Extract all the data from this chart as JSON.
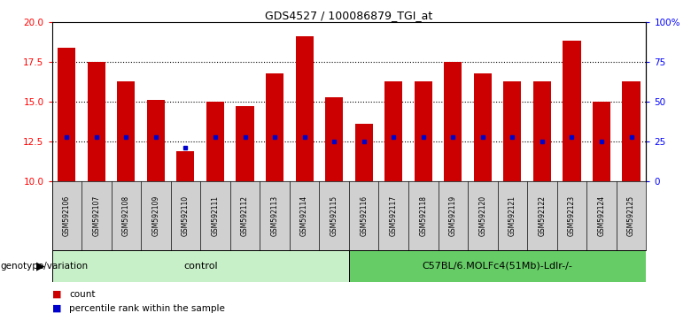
{
  "title": "GDS4527 / 100086879_TGI_at",
  "samples": [
    "GSM592106",
    "GSM592107",
    "GSM592108",
    "GSM592109",
    "GSM592110",
    "GSM592111",
    "GSM592112",
    "GSM592113",
    "GSM592114",
    "GSM592115",
    "GSM592116",
    "GSM592117",
    "GSM592118",
    "GSM592119",
    "GSM592120",
    "GSM592121",
    "GSM592122",
    "GSM592123",
    "GSM592124",
    "GSM592125"
  ],
  "counts": [
    18.4,
    17.5,
    16.3,
    15.1,
    11.9,
    15.0,
    14.7,
    16.8,
    19.1,
    15.3,
    13.6,
    16.3,
    16.3,
    17.5,
    16.8,
    16.3,
    16.3,
    18.8,
    15.0,
    16.3
  ],
  "percentile_ranks": [
    12.8,
    12.8,
    12.8,
    12.8,
    12.1,
    12.8,
    12.8,
    12.8,
    12.8,
    12.5,
    12.5,
    12.8,
    12.8,
    12.8,
    12.8,
    12.8,
    12.5,
    12.8,
    12.5,
    12.8
  ],
  "n_control": 10,
  "n_treatment": 10,
  "control_label": "control",
  "treatment_label": "C57BL/6.MOLFc4(51Mb)-Ldlr-/-",
  "ylim_left": [
    10,
    20
  ],
  "ylim_right": [
    0,
    100
  ],
  "yticks_left": [
    10,
    12.5,
    15,
    17.5,
    20
  ],
  "yticks_right": [
    0,
    25,
    50,
    75,
    100
  ],
  "bar_color": "#cc0000",
  "dot_color": "#0000cc",
  "control_bg": "#c8f0c8",
  "treatment_bg": "#66cc66",
  "sample_bg": "#d0d0d0",
  "legend_count": "count",
  "legend_percentile": "percentile rank within the sample",
  "geno_label": "genotype/variation"
}
